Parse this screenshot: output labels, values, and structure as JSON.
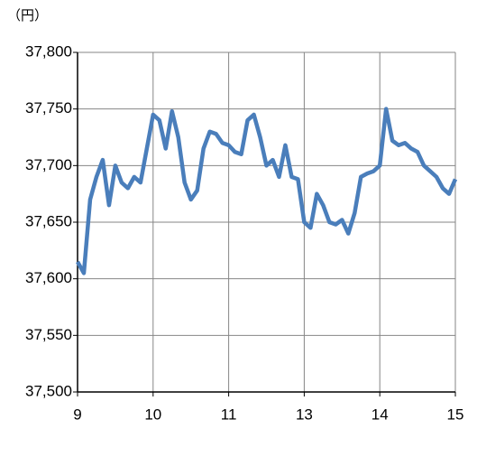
{
  "chart_data": {
    "type": "line",
    "y_unit_label": "（円）",
    "x": [
      0,
      1,
      2,
      3,
      4,
      5,
      6,
      7,
      8,
      9,
      10,
      11,
      12,
      13,
      14,
      15,
      16,
      17,
      18,
      19,
      20,
      21,
      22,
      23,
      24,
      25,
      26,
      27,
      28,
      29,
      30,
      31,
      32,
      33,
      34,
      35,
      36,
      37,
      38,
      39,
      40,
      41,
      42,
      43,
      44,
      45,
      46,
      47,
      48,
      49,
      50,
      51,
      52,
      53,
      54,
      55,
      56,
      57,
      58,
      59,
      60
    ],
    "series": [
      {
        "color": "#4a7ebb",
        "values": [
          37615,
          37605,
          37670,
          37690,
          37705,
          37665,
          37700,
          37685,
          37680,
          37690,
          37685,
          37715,
          37745,
          37740,
          37715,
          37748,
          37725,
          37685,
          37670,
          37678,
          37715,
          37730,
          37728,
          37720,
          37718,
          37712,
          37710,
          37740,
          37745,
          37725,
          37700,
          37705,
          37690,
          37718,
          37690,
          37688,
          37650,
          37645,
          37675,
          37665,
          37650,
          37648,
          37652,
          37640,
          37658,
          37690,
          37693,
          37695,
          37700,
          37750,
          37722,
          37718,
          37720,
          37715,
          37712,
          37700,
          37695,
          37690,
          37680,
          37675,
          37688
        ]
      }
    ],
    "xlim": [
      0,
      60
    ],
    "xticks": [
      {
        "value": 0,
        "label": "9"
      },
      {
        "value": 12,
        "label": "10"
      },
      {
        "value": 24,
        "label": "11"
      },
      {
        "value": 36,
        "label": "13"
      },
      {
        "value": 48,
        "label": "14"
      },
      {
        "value": 60,
        "label": "15"
      }
    ],
    "ylim": [
      37500,
      37800
    ],
    "yticks": [
      {
        "value": 37500,
        "label": "37,500"
      },
      {
        "value": 37550,
        "label": "37,550"
      },
      {
        "value": 37600,
        "label": "37,600"
      },
      {
        "value": 37650,
        "label": "37,650"
      },
      {
        "value": 37700,
        "label": "37,700"
      },
      {
        "value": 37750,
        "label": "37,750"
      },
      {
        "value": 37800,
        "label": "37,800"
      }
    ],
    "grid": true
  }
}
